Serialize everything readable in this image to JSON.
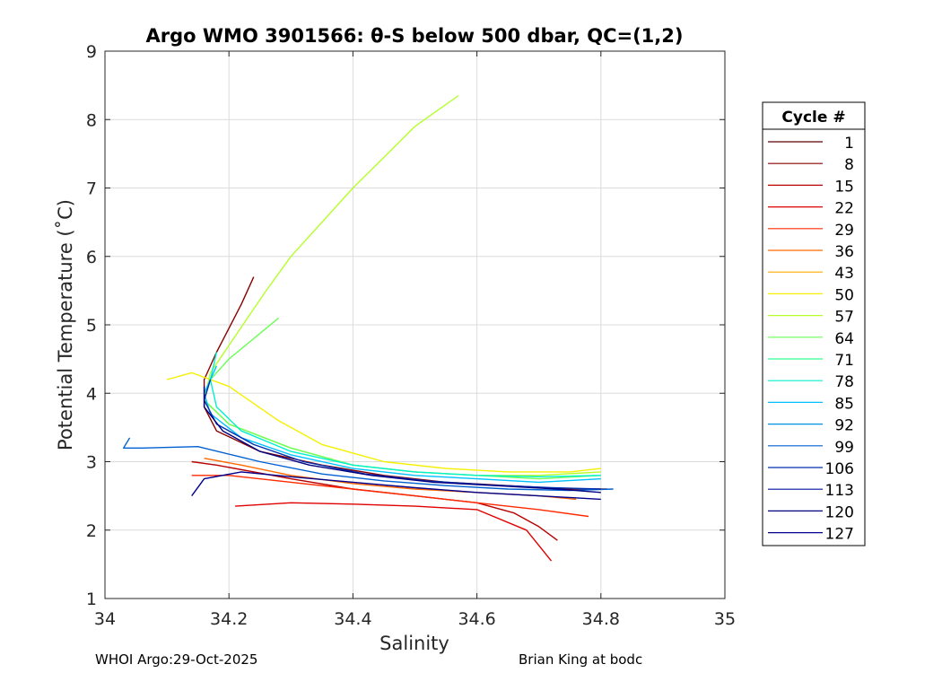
{
  "chart_data": {
    "type": "line",
    "title": "Argo WMO 3901566: θ-S below 500 dbar,  QC=(1,2)",
    "xlabel": "Salinity",
    "ylabel": "Potential Temperature (˚C)",
    "xlim": [
      34,
      35
    ],
    "ylim": [
      1,
      9
    ],
    "xticks": [
      "34",
      "34.2",
      "34.4",
      "34.6",
      "34.8",
      "35"
    ],
    "yticks": [
      "1",
      "2",
      "3",
      "4",
      "5",
      "6",
      "7",
      "8",
      "9"
    ],
    "grid": true,
    "legend": {
      "title": "Cycle #",
      "position": "right",
      "entries": [
        {
          "label": "1",
          "color": "#5a0000"
        },
        {
          "label": "8",
          "color": "#8a0000"
        },
        {
          "label": "15",
          "color": "#b80000"
        },
        {
          "label": "22",
          "color": "#e00000"
        },
        {
          "label": "29",
          "color": "#ff2a00"
        },
        {
          "label": "36",
          "color": "#ff6a00"
        },
        {
          "label": "43",
          "color": "#ffaa00"
        },
        {
          "label": "50",
          "color": "#f4f000"
        },
        {
          "label": "57",
          "color": "#b4ff2a"
        },
        {
          "label": "64",
          "color": "#6aff55"
        },
        {
          "label": "71",
          "color": "#2aff95"
        },
        {
          "label": "78",
          "color": "#00f0d0"
        },
        {
          "label": "85",
          "color": "#00c0ff"
        },
        {
          "label": "92",
          "color": "#0090e0"
        },
        {
          "label": "99",
          "color": "#0060d0"
        },
        {
          "label": "106",
          "color": "#0030b0"
        },
        {
          "label": "113",
          "color": "#0010a0"
        },
        {
          "label": "120",
          "color": "#000080"
        },
        {
          "label": "127",
          "color": "#00008c"
        }
      ]
    },
    "series": [
      {
        "color": "#8a0000",
        "x": [
          34.24,
          34.22,
          34.2,
          34.18,
          34.16,
          34.16,
          34.18,
          34.25,
          34.35,
          34.45,
          34.55,
          34.65,
          34.75,
          34.81
        ],
        "y": [
          5.7,
          5.3,
          4.95,
          4.6,
          4.2,
          3.8,
          3.45,
          3.15,
          2.95,
          2.8,
          2.7,
          2.65,
          2.6,
          2.6
        ]
      },
      {
        "color": "#b80000",
        "x": [
          34.14,
          34.18,
          34.3,
          34.4,
          34.5,
          34.6,
          34.66,
          34.7,
          34.73
        ],
        "y": [
          3.0,
          2.95,
          2.75,
          2.6,
          2.5,
          2.4,
          2.25,
          2.05,
          1.85
        ]
      },
      {
        "color": "#e00000",
        "x": [
          34.21,
          34.3,
          34.4,
          34.5,
          34.6,
          34.68,
          34.72
        ],
        "y": [
          2.35,
          2.4,
          2.38,
          2.35,
          2.3,
          2.0,
          1.55
        ]
      },
      {
        "color": "#ff2a00",
        "x": [
          34.14,
          34.2,
          34.3,
          34.4,
          34.5,
          34.6,
          34.7,
          34.78
        ],
        "y": [
          2.8,
          2.8,
          2.7,
          2.6,
          2.5,
          2.4,
          2.3,
          2.2
        ]
      },
      {
        "color": "#ff6a00",
        "x": [
          34.16,
          34.22,
          34.3,
          34.4,
          34.5,
          34.6,
          34.7,
          34.76
        ],
        "y": [
          3.05,
          2.95,
          2.8,
          2.68,
          2.6,
          2.55,
          2.5,
          2.45
        ]
      },
      {
        "color": "#f4f000",
        "x": [
          34.1,
          34.14,
          34.2,
          34.28,
          34.35,
          34.45,
          34.55,
          34.65,
          34.75,
          34.8
        ],
        "y": [
          4.2,
          4.3,
          4.1,
          3.6,
          3.25,
          3.0,
          2.9,
          2.85,
          2.85,
          2.9
        ]
      },
      {
        "color": "#b4ff2a",
        "x": [
          34.57,
          34.5,
          34.45,
          34.4,
          34.35,
          34.3,
          34.26,
          34.23,
          34.2,
          34.17,
          34.16,
          34.2,
          34.3,
          34.4,
          34.5,
          34.6,
          34.7,
          34.8
        ],
        "y": [
          8.35,
          7.9,
          7.45,
          7.0,
          6.5,
          6.0,
          5.5,
          5.1,
          4.7,
          4.3,
          3.9,
          3.55,
          3.2,
          2.95,
          2.85,
          2.8,
          2.8,
          2.85
        ]
      },
      {
        "color": "#6aff55",
        "x": [
          34.28,
          34.24,
          34.2,
          34.17,
          34.16,
          34.2,
          34.3,
          34.4,
          34.5,
          34.6,
          34.7,
          34.8
        ],
        "y": [
          5.1,
          4.8,
          4.5,
          4.2,
          3.9,
          3.55,
          3.2,
          2.95,
          2.85,
          2.8,
          2.75,
          2.8
        ]
      },
      {
        "color": "#00f0d0",
        "x": [
          34.18,
          34.17,
          34.18,
          34.22,
          34.3,
          34.4,
          34.5,
          34.6,
          34.7,
          34.8
        ],
        "y": [
          4.6,
          4.2,
          3.8,
          3.45,
          3.15,
          2.95,
          2.85,
          2.8,
          2.78,
          2.8
        ]
      },
      {
        "color": "#00c0ff",
        "x": [
          34.18,
          34.16,
          34.17,
          34.22,
          34.3,
          34.4,
          34.5,
          34.6,
          34.7,
          34.8
        ],
        "y": [
          4.4,
          4.0,
          3.7,
          3.35,
          3.1,
          2.9,
          2.8,
          2.75,
          2.7,
          2.75
        ]
      },
      {
        "color": "#0060d0",
        "x": [
          34.04,
          34.03,
          34.06,
          34.15,
          34.25,
          34.35,
          34.45,
          34.55,
          34.65,
          34.75,
          34.82
        ],
        "y": [
          3.35,
          3.2,
          3.2,
          3.22,
          3.0,
          2.82,
          2.72,
          2.65,
          2.6,
          2.58,
          2.6
        ]
      },
      {
        "color": "#0030b0",
        "x": [
          34.17,
          34.16,
          34.18,
          34.24,
          34.32,
          34.42,
          34.52,
          34.62,
          34.72,
          34.8
        ],
        "y": [
          4.2,
          3.9,
          3.55,
          3.25,
          3.0,
          2.82,
          2.72,
          2.66,
          2.62,
          2.6
        ]
      },
      {
        "color": "#000080",
        "x": [
          34.16,
          34.16,
          34.19,
          34.25,
          34.33,
          34.43,
          34.53,
          34.63,
          34.73,
          34.8
        ],
        "y": [
          4.1,
          3.8,
          3.45,
          3.15,
          2.95,
          2.8,
          2.7,
          2.65,
          2.6,
          2.55
        ]
      },
      {
        "color": "#00008c",
        "x": [
          34.14,
          34.16,
          34.22,
          34.3,
          34.4,
          34.5,
          34.6,
          34.7,
          34.8
        ],
        "y": [
          2.5,
          2.75,
          2.85,
          2.78,
          2.7,
          2.62,
          2.55,
          2.5,
          2.45
        ]
      }
    ]
  },
  "footer": {
    "left": "WHOI Argo:29-Oct-2025",
    "right": "Brian King at bodc"
  }
}
